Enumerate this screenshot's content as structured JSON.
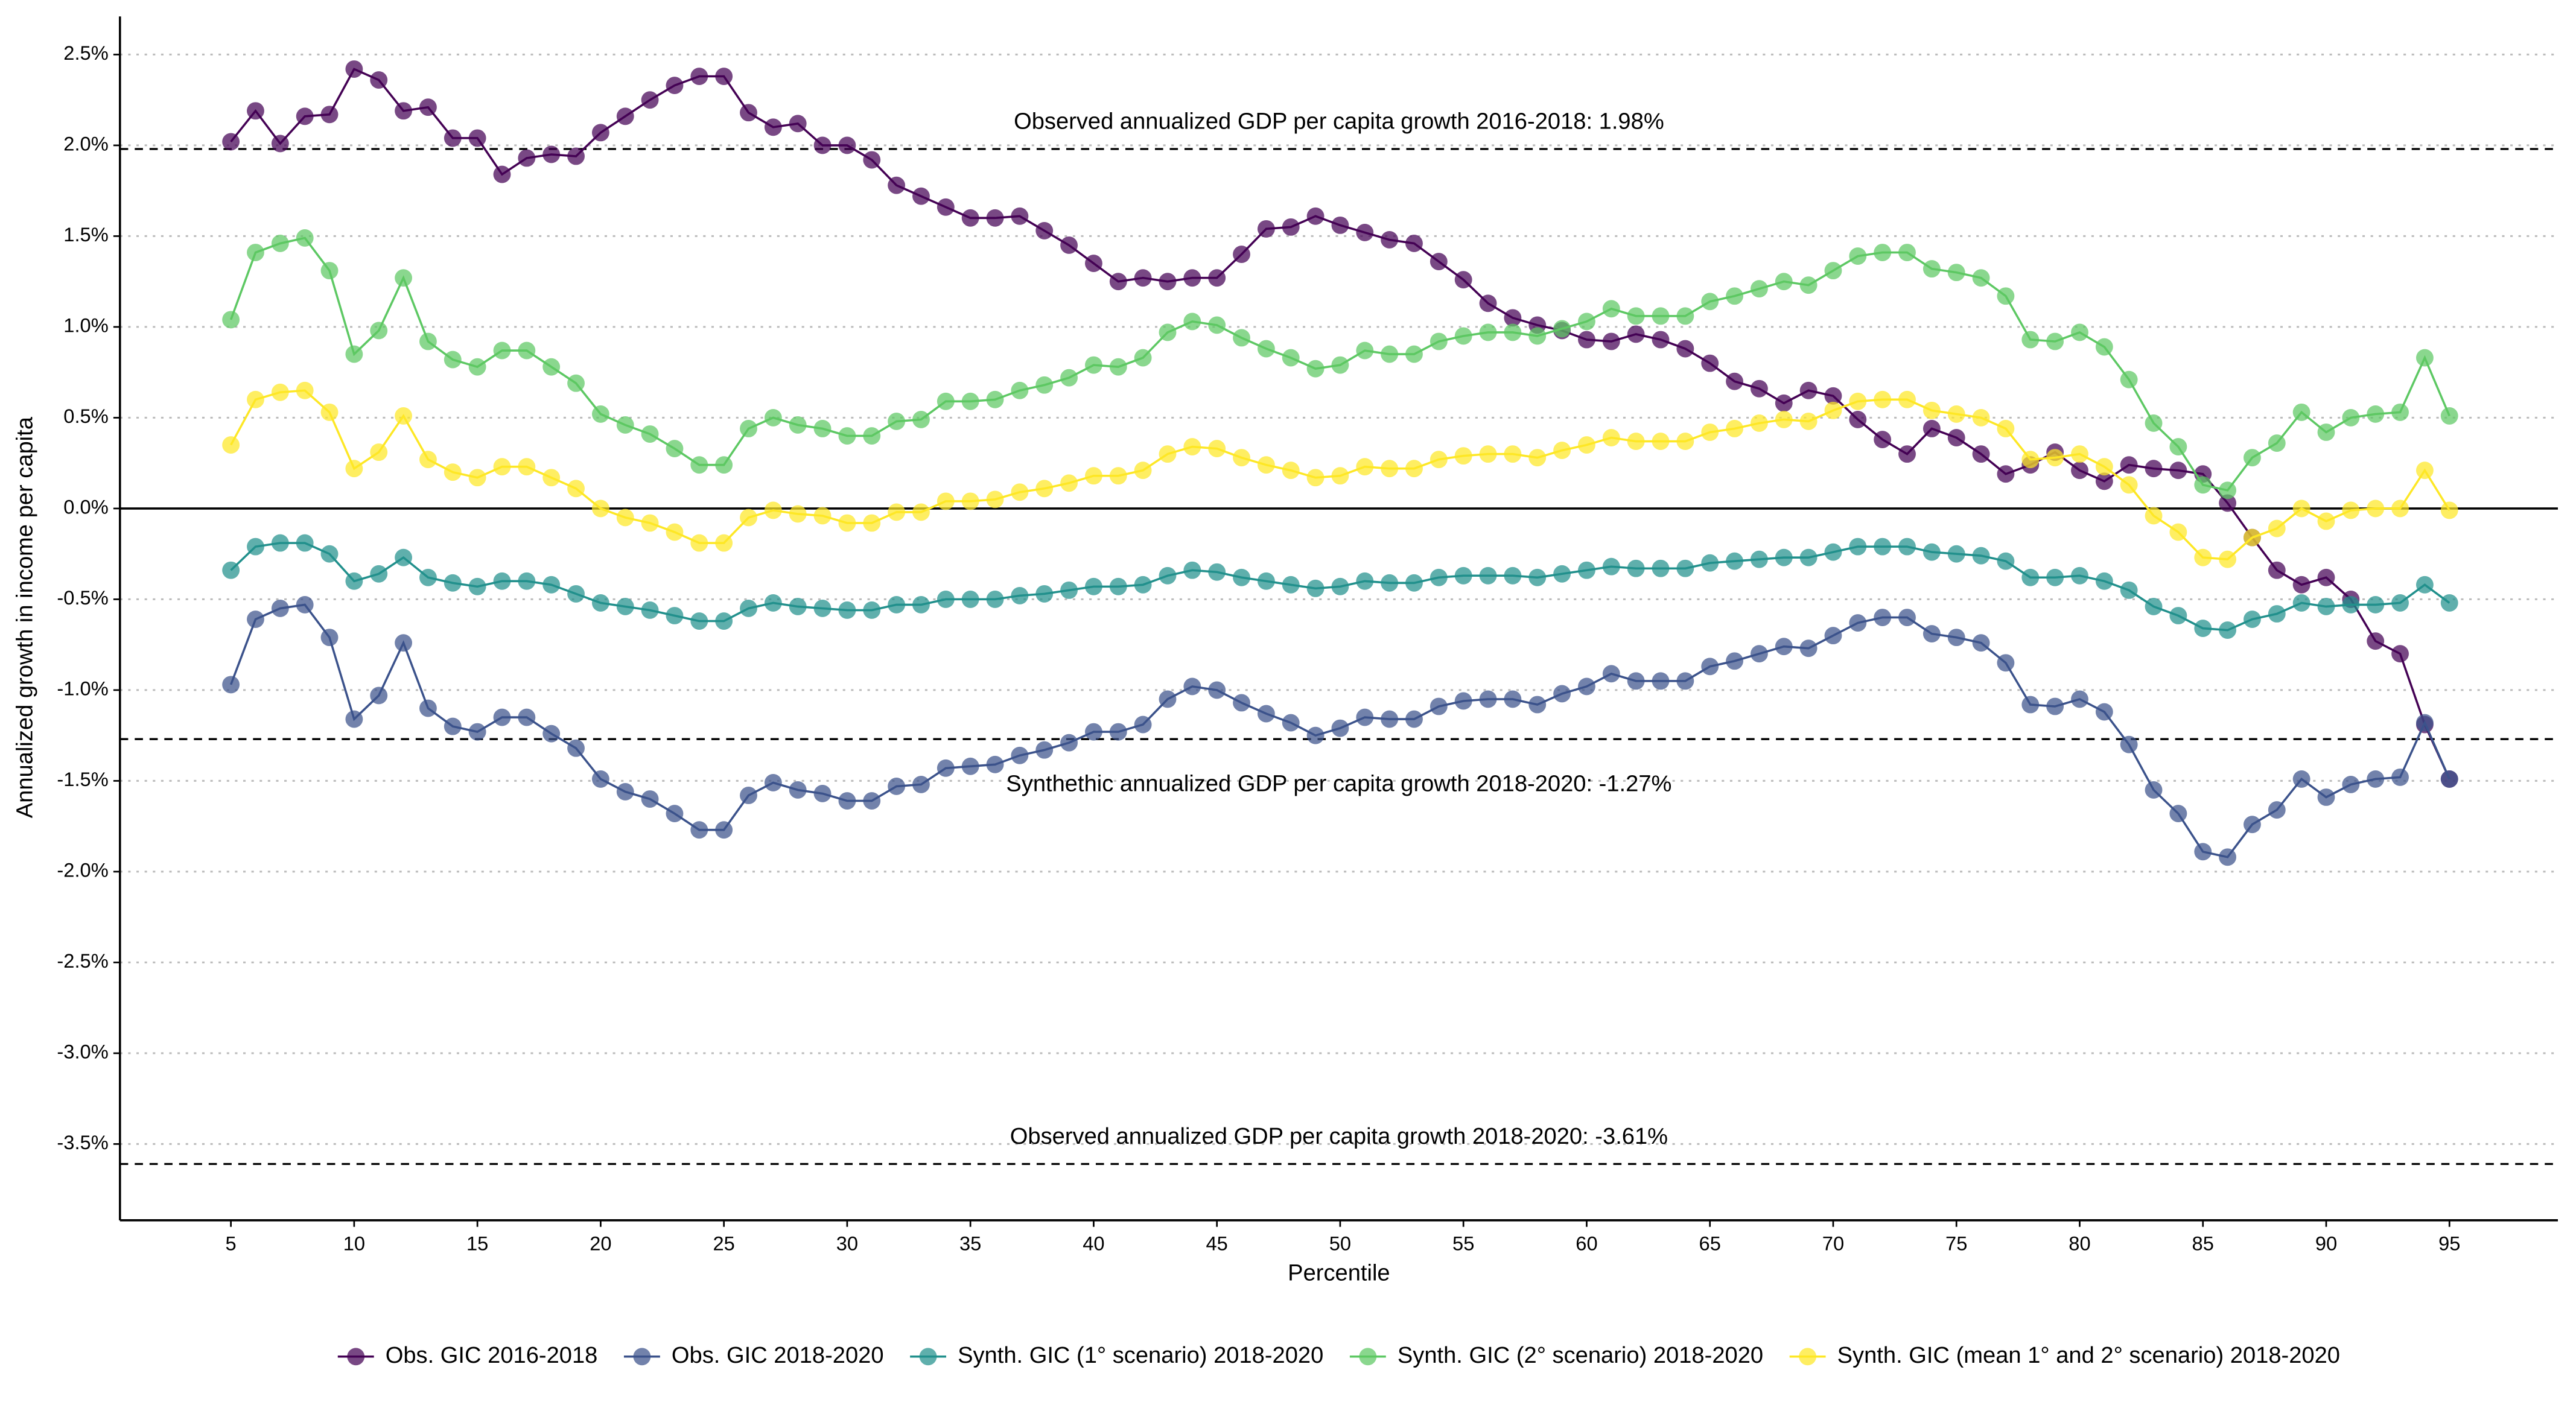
{
  "chart_data": {
    "type": "line",
    "x_label": "Percentile",
    "y_label": "Annualized growth in income per capita",
    "x": [
      5,
      6,
      7,
      8,
      9,
      10,
      11,
      12,
      13,
      14,
      15,
      16,
      17,
      18,
      19,
      20,
      21,
      22,
      23,
      24,
      25,
      26,
      27,
      28,
      29,
      30,
      31,
      32,
      33,
      34,
      35,
      36,
      37,
      38,
      39,
      40,
      41,
      42,
      43,
      44,
      45,
      46,
      47,
      48,
      49,
      50,
      51,
      52,
      53,
      54,
      55,
      56,
      57,
      58,
      59,
      60,
      61,
      62,
      63,
      64,
      65,
      66,
      67,
      68,
      69,
      70,
      71,
      72,
      73,
      74,
      75,
      76,
      77,
      78,
      79,
      80,
      81,
      82,
      83,
      84,
      85,
      86,
      87,
      88,
      89,
      90,
      91,
      92,
      93,
      94,
      95
    ],
    "xlim": [
      0.5,
      99.4
    ],
    "xticks": [
      5,
      10,
      15,
      20,
      25,
      30,
      35,
      40,
      45,
      50,
      55,
      60,
      65,
      70,
      75,
      80,
      85,
      90,
      95
    ],
    "ylim": [
      -3.92,
      2.71
    ],
    "yticks": [
      {
        "value": -3.5,
        "label": "-3.5%"
      },
      {
        "value": -3.0,
        "label": "-3.0%"
      },
      {
        "value": -2.5,
        "label": "-2.5%"
      },
      {
        "value": -2.0,
        "label": "-2.0%"
      },
      {
        "value": -1.5,
        "label": "-1.5%"
      },
      {
        "value": -1.0,
        "label": "-1.0%"
      },
      {
        "value": -0.5,
        "label": "-0.5%"
      },
      {
        "value": 0,
        "label": "0.0%"
      },
      {
        "value": 0.5,
        "label": "0.5%"
      },
      {
        "value": 1.0,
        "label": "1.0%"
      },
      {
        "value": 1.5,
        "label": "1.5%"
      },
      {
        "value": 2.0,
        "label": "2.0%"
      },
      {
        "value": 2.5,
        "label": "2.5%"
      }
    ],
    "grid": true,
    "legend": "bottom",
    "hlines": [
      {
        "value": 1.98,
        "label": "Observed annualized GDP per capita growth 2016-2018: 1.98%"
      },
      {
        "value": -1.27,
        "label": "Synthethic annualized GDP per capita growth 2018-2020: -1.27%"
      },
      {
        "value": -3.61,
        "label": "Observed annualized GDP per capita growth 2018-2020: -3.61%"
      }
    ],
    "series": [
      {
        "name": "Obs. GIC 2016-2018",
        "color": "#440154",
        "values": [
          2.02,
          2.19,
          2.01,
          2.16,
          2.17,
          2.42,
          2.36,
          2.19,
          2.21,
          2.04,
          2.04,
          1.84,
          1.93,
          1.95,
          1.94,
          2.07,
          2.16,
          2.25,
          2.33,
          2.38,
          2.38,
          2.18,
          2.1,
          2.12,
          2.0,
          2.0,
          1.92,
          1.78,
          1.72,
          1.66,
          1.6,
          1.6,
          1.61,
          1.53,
          1.45,
          1.35,
          1.25,
          1.27,
          1.25,
          1.27,
          1.27,
          1.4,
          1.54,
          1.55,
          1.61,
          1.56,
          1.52,
          1.48,
          1.46,
          1.36,
          1.26,
          1.13,
          1.05,
          1.01,
          0.98,
          0.93,
          0.92,
          0.96,
          0.93,
          0.88,
          0.8,
          0.7,
          0.66,
          0.58,
          0.65,
          0.62,
          0.49,
          0.38,
          0.3,
          0.44,
          0.39,
          0.3,
          0.19,
          0.24,
          0.31,
          0.21,
          0.15,
          0.24,
          0.22,
          0.21,
          0.19,
          0.03,
          -0.16,
          -0.34,
          -0.42,
          -0.38,
          -0.5,
          -0.73,
          -0.8,
          -1.19,
          -1.49
        ]
      },
      {
        "name": "Obs. GIC 2018-2020",
        "color": "#3b528b",
        "values": [
          -0.97,
          -0.61,
          -0.55,
          -0.53,
          -0.71,
          -1.16,
          -1.03,
          -0.74,
          -1.1,
          -1.2,
          -1.23,
          -1.15,
          -1.15,
          -1.24,
          -1.32,
          -1.49,
          -1.56,
          -1.6,
          -1.68,
          -1.77,
          -1.77,
          -1.58,
          -1.51,
          -1.55,
          -1.57,
          -1.61,
          -1.61,
          -1.53,
          -1.52,
          -1.43,
          -1.42,
          -1.41,
          -1.36,
          -1.33,
          -1.29,
          -1.23,
          -1.23,
          -1.19,
          -1.05,
          -0.98,
          -1.0,
          -1.07,
          -1.13,
          -1.18,
          -1.25,
          -1.21,
          -1.15,
          -1.16,
          -1.16,
          -1.09,
          -1.06,
          -1.05,
          -1.05,
          -1.08,
          -1.02,
          -0.98,
          -0.91,
          -0.95,
          -0.95,
          -0.95,
          -0.87,
          -0.84,
          -0.8,
          -0.76,
          -0.77,
          -0.7,
          -0.63,
          -0.6,
          -0.6,
          -0.69,
          -0.71,
          -0.74,
          -0.85,
          -1.08,
          -1.09,
          -1.05,
          -1.12,
          -1.3,
          -1.55,
          -1.68,
          -1.89,
          -1.92,
          -1.74,
          -1.66,
          -1.49,
          -1.59,
          -1.52,
          -1.49,
          -1.48,
          -1.18,
          -1.49
        ]
      },
      {
        "name": "Synth. GIC (1° scenario) 2018-2020",
        "color": "#21908c",
        "values": [
          -0.34,
          -0.21,
          -0.19,
          -0.19,
          -0.25,
          -0.4,
          -0.36,
          -0.27,
          -0.38,
          -0.41,
          -0.43,
          -0.4,
          -0.4,
          -0.42,
          -0.47,
          -0.52,
          -0.54,
          -0.56,
          -0.59,
          -0.62,
          -0.62,
          -0.55,
          -0.52,
          -0.54,
          -0.55,
          -0.56,
          -0.56,
          -0.53,
          -0.53,
          -0.5,
          -0.5,
          -0.5,
          -0.48,
          -0.47,
          -0.45,
          -0.43,
          -0.43,
          -0.42,
          -0.37,
          -0.34,
          -0.35,
          -0.38,
          -0.4,
          -0.42,
          -0.44,
          -0.43,
          -0.4,
          -0.41,
          -0.41,
          -0.38,
          -0.37,
          -0.37,
          -0.37,
          -0.38,
          -0.36,
          -0.34,
          -0.32,
          -0.33,
          -0.33,
          -0.33,
          -0.3,
          -0.29,
          -0.28,
          -0.27,
          -0.27,
          -0.24,
          -0.21,
          -0.21,
          -0.21,
          -0.24,
          -0.25,
          -0.26,
          -0.29,
          -0.38,
          -0.38,
          -0.37,
          -0.4,
          -0.45,
          -0.54,
          -0.59,
          -0.66,
          -0.67,
          -0.61,
          -0.58,
          -0.52,
          -0.54,
          -0.53,
          -0.53,
          -0.52,
          -0.42,
          -0.52
        ]
      },
      {
        "name": "Synth. GIC (2° scenario) 2018-2020",
        "color": "#5dc863",
        "values": [
          1.04,
          1.41,
          1.46,
          1.49,
          1.31,
          0.85,
          0.98,
          1.27,
          0.92,
          0.82,
          0.78,
          0.87,
          0.87,
          0.78,
          0.69,
          0.52,
          0.46,
          0.41,
          0.33,
          0.24,
          0.24,
          0.44,
          0.5,
          0.46,
          0.44,
          0.4,
          0.4,
          0.48,
          0.49,
          0.59,
          0.59,
          0.6,
          0.65,
          0.68,
          0.72,
          0.79,
          0.78,
          0.83,
          0.97,
          1.03,
          1.01,
          0.94,
          0.88,
          0.83,
          0.77,
          0.79,
          0.87,
          0.85,
          0.85,
          0.92,
          0.95,
          0.97,
          0.97,
          0.95,
          0.99,
          1.03,
          1.1,
          1.06,
          1.06,
          1.06,
          1.14,
          1.17,
          1.21,
          1.25,
          1.23,
          1.31,
          1.39,
          1.41,
          1.41,
          1.32,
          1.3,
          1.27,
          1.17,
          0.93,
          0.92,
          0.97,
          0.89,
          0.71,
          0.47,
          0.34,
          0.13,
          0.1,
          0.28,
          0.36,
          0.53,
          0.42,
          0.5,
          0.52,
          0.53,
          0.83,
          0.51
        ]
      },
      {
        "name": "Synth. GIC (mean 1° and 2° scenario) 2018-2020",
        "color": "#fde725",
        "values": [
          0.35,
          0.6,
          0.64,
          0.65,
          0.53,
          0.22,
          0.31,
          0.51,
          0.27,
          0.2,
          0.17,
          0.23,
          0.23,
          0.17,
          0.11,
          0.0,
          -0.05,
          -0.08,
          -0.13,
          -0.19,
          -0.19,
          -0.05,
          -0.01,
          -0.03,
          -0.04,
          -0.08,
          -0.08,
          -0.02,
          -0.02,
          0.04,
          0.04,
          0.05,
          0.09,
          0.11,
          0.14,
          0.18,
          0.18,
          0.21,
          0.3,
          0.34,
          0.33,
          0.28,
          0.24,
          0.21,
          0.17,
          0.18,
          0.23,
          0.22,
          0.22,
          0.27,
          0.29,
          0.3,
          0.3,
          0.28,
          0.32,
          0.35,
          0.39,
          0.37,
          0.37,
          0.37,
          0.42,
          0.44,
          0.47,
          0.49,
          0.48,
          0.54,
          0.59,
          0.6,
          0.6,
          0.54,
          0.52,
          0.5,
          0.44,
          0.27,
          0.28,
          0.3,
          0.23,
          0.13,
          -0.04,
          -0.13,
          -0.27,
          -0.28,
          -0.16,
          -0.11,
          0.0,
          -0.07,
          -0.01,
          0.0,
          0.0,
          0.21,
          -0.01
        ]
      }
    ]
  }
}
